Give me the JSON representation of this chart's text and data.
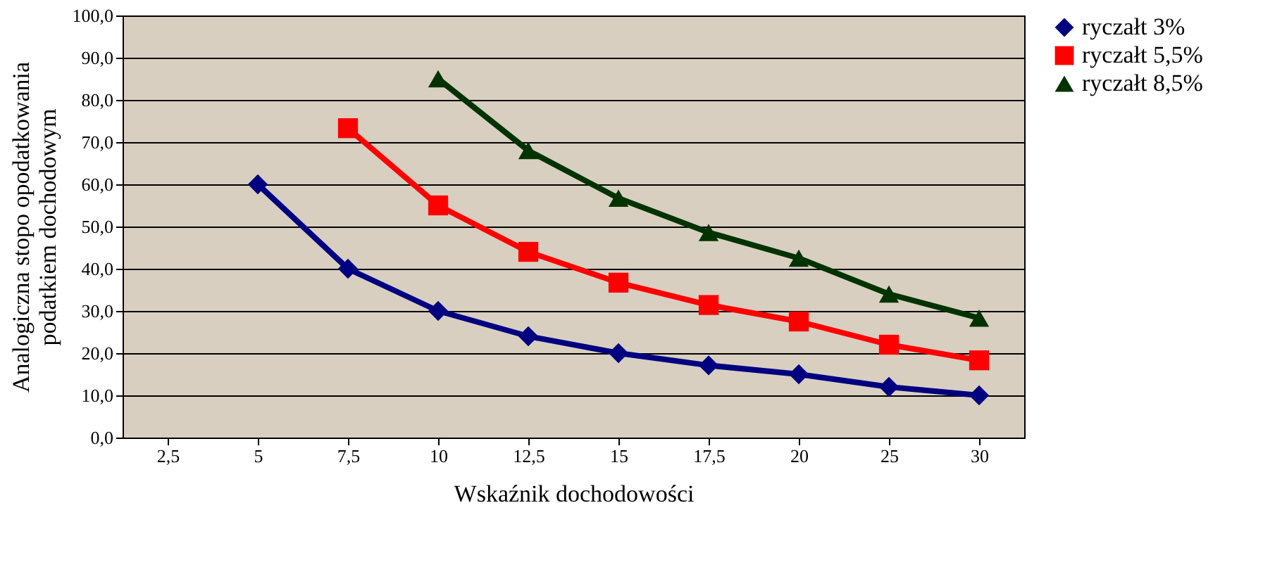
{
  "chart_data": {
    "type": "line",
    "xlabel": "Wskaźnik dochodowości",
    "ylabel": "Analogiczna stopo opodatkowania podatkiem dochodowym",
    "categories": [
      "2,5",
      "5",
      "7,5",
      "10",
      "12,5",
      "15",
      "17,5",
      "20",
      "25",
      "30"
    ],
    "series": [
      {
        "name": "ryczałt 3%",
        "color": "#000080",
        "marker": "diamond",
        "values": [
          null,
          60,
          40,
          30,
          24,
          20,
          17.1,
          15,
          12,
          10
        ]
      },
      {
        "name": "ryczałt 5,5%",
        "color": "#ff0000",
        "marker": "square",
        "values": [
          null,
          null,
          73.3,
          55,
          44,
          36.7,
          31.4,
          27.5,
          22,
          18.3
        ]
      },
      {
        "name": "ryczałt 8,5%",
        "color": "#003300",
        "marker": "triangle",
        "values": [
          null,
          null,
          null,
          85,
          68,
          56.7,
          48.6,
          42.5,
          34,
          28.3
        ]
      }
    ],
    "ylim": [
      0,
      100
    ],
    "yticks": [
      {
        "value": 0,
        "label": "0,0"
      },
      {
        "value": 10,
        "label": "10,0"
      },
      {
        "value": 20,
        "label": "20,0"
      },
      {
        "value": 30,
        "label": "30,0"
      },
      {
        "value": 40,
        "label": "40,0"
      },
      {
        "value": 50,
        "label": "50,0"
      },
      {
        "value": 60,
        "label": "60,0"
      },
      {
        "value": 70,
        "label": "70,0"
      },
      {
        "value": 80,
        "label": "80,0"
      },
      {
        "value": 90,
        "label": "90,0"
      },
      {
        "value": 100,
        "label": "100,0"
      }
    ],
    "grid": "y",
    "legend": "right",
    "line_style": "solid"
  }
}
